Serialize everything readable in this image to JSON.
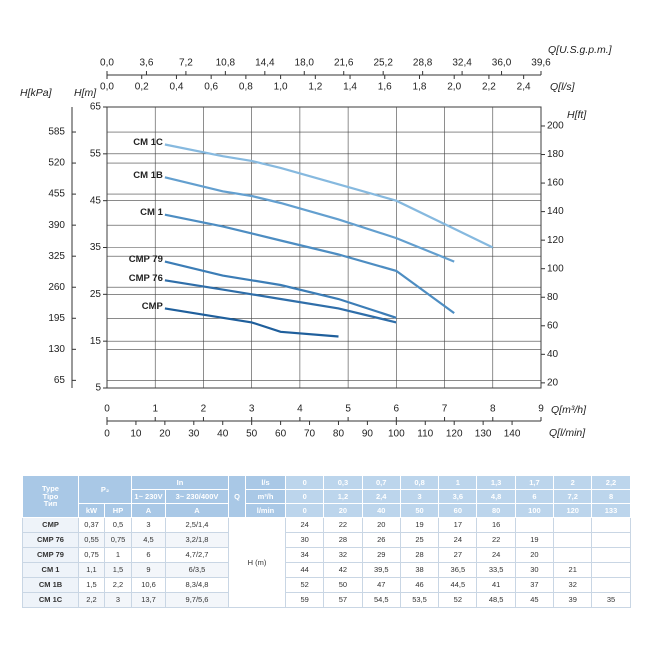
{
  "chart_data": {
    "type": "line",
    "x_label": "Q[m³/h]",
    "xlim": [
      0,
      9
    ],
    "xticks": [
      0,
      1,
      2,
      3,
      4,
      5,
      6,
      7,
      8,
      9
    ],
    "x2_label": "Q[l/min]",
    "x2lim": [
      0,
      150
    ],
    "x2ticks": [
      0,
      10,
      20,
      30,
      40,
      50,
      60,
      70,
      80,
      90,
      100,
      110,
      120,
      130,
      140
    ],
    "x3_label": "Q[l/s]",
    "x3lim": [
      0,
      2.5
    ],
    "x3ticks": [
      {
        "value": 0,
        "label": "0,0"
      },
      {
        "value": 0.2,
        "label": "0,2"
      },
      {
        "value": 0.4,
        "label": "0,4"
      },
      {
        "value": 0.6,
        "label": "0,6"
      },
      {
        "value": 0.8,
        "label": "0,8"
      },
      {
        "value": 1.0,
        "label": "1,0"
      },
      {
        "value": 1.2,
        "label": "1,2"
      },
      {
        "value": 1.4,
        "label": "1,4"
      },
      {
        "value": 1.6,
        "label": "1,6"
      },
      {
        "value": 1.8,
        "label": "1,8"
      },
      {
        "value": 2.0,
        "label": "2,0"
      },
      {
        "value": 2.2,
        "label": "2,2"
      },
      {
        "value": 2.4,
        "label": "2,4"
      }
    ],
    "x4_label": "Q[U.S.g.p.m.]",
    "x4lim": [
      0,
      39.6
    ],
    "x4ticks": [
      {
        "value": 0,
        "label": "0,0"
      },
      {
        "value": 3.6,
        "label": "3,6"
      },
      {
        "value": 7.2,
        "label": "7,2"
      },
      {
        "value": 10.8,
        "label": "10,8"
      },
      {
        "value": 14.4,
        "label": "14,4"
      },
      {
        "value": 18.0,
        "label": "18,0"
      },
      {
        "value": 21.6,
        "label": "21,6"
      },
      {
        "value": 25.2,
        "label": "25,2"
      },
      {
        "value": 28.8,
        "label": "28,8"
      },
      {
        "value": 32.4,
        "label": "32,4"
      },
      {
        "value": 36.0,
        "label": "36,0"
      },
      {
        "value": 39.6,
        "label": "39,6"
      }
    ],
    "y_label": "H[m]",
    "ylim": [
      5,
      65
    ],
    "yticks": [
      5,
      15,
      25,
      35,
      45,
      55,
      65
    ],
    "y2_label": "H[ft]",
    "y2lim": [
      16.4,
      213.3
    ],
    "y2ticks": [
      20,
      40,
      60,
      80,
      100,
      120,
      140,
      160,
      180,
      200
    ],
    "y3_label": "H[kPa]",
    "y3lim": [
      49.0,
      637.4
    ],
    "y3ticks": [
      65,
      130,
      195,
      260,
      325,
      390,
      455,
      520,
      585
    ],
    "grid": true,
    "x": [
      1.2,
      2.4,
      3,
      3.6,
      4.8,
      6,
      7.2,
      8
    ],
    "series": [
      {
        "name": "CMP",
        "color": "#1f5f9c",
        "values": [
          22,
          20,
          19,
          17,
          16,
          null,
          null,
          null
        ]
      },
      {
        "name": "CMP 76",
        "color": "#2f6ea9",
        "values": [
          28,
          26,
          25,
          24,
          22,
          19,
          null,
          null
        ]
      },
      {
        "name": "CMP 79",
        "color": "#3c7db6",
        "values": [
          32,
          29,
          28,
          27,
          24,
          20,
          null,
          null
        ]
      },
      {
        "name": "CM 1",
        "color": "#4d8dc2",
        "values": [
          42,
          39.5,
          38,
          36.5,
          33.5,
          30,
          21,
          null
        ]
      },
      {
        "name": "CM 1B",
        "color": "#639fcf",
        "values": [
          50,
          47,
          46,
          44.5,
          41,
          37,
          32,
          null
        ]
      },
      {
        "name": "CM 1C",
        "color": "#86b9df",
        "values": [
          57,
          54.5,
          53.5,
          52,
          48.5,
          45,
          39,
          35
        ]
      }
    ]
  },
  "table": {
    "header": {
      "type": [
        "Type",
        "Tipo",
        "Тип"
      ],
      "p2": "P₂",
      "in": "In",
      "in_1": "1~ 230V",
      "in_3": "3~ 230/400V",
      "q": "Q",
      "units": [
        "l/s",
        "m³/h",
        "l/min"
      ],
      "sub": [
        "kW",
        "HP",
        "A",
        "A"
      ],
      "h": "H (m)",
      "flow": [
        [
          "0",
          "0,3",
          "0,7",
          "0,8",
          "1",
          "1,3",
          "1,7",
          "2",
          "2,2"
        ],
        [
          "0",
          "1,2",
          "2,4",
          "3",
          "3,6",
          "4,8",
          "6",
          "7,2",
          "8"
        ],
        [
          "0",
          "20",
          "40",
          "50",
          "60",
          "80",
          "100",
          "120",
          "133"
        ]
      ]
    },
    "rows": [
      {
        "type": "CMP",
        "kw": "0,37",
        "hp": "0,5",
        "a1": "3",
        "a3": "2,5/1,4",
        "h": [
          "24",
          "22",
          "20",
          "19",
          "17",
          "16"
        ]
      },
      {
        "type": "CMP 76",
        "kw": "0,55",
        "hp": "0,75",
        "a1": "4,5",
        "a3": "3,2/1,8",
        "h": [
          "30",
          "28",
          "26",
          "25",
          "24",
          "22",
          "19"
        ]
      },
      {
        "type": "CMP 79",
        "kw": "0,75",
        "hp": "1",
        "a1": "6",
        "a3": "4,7/2,7",
        "h": [
          "34",
          "32",
          "29",
          "28",
          "27",
          "24",
          "20"
        ]
      },
      {
        "type": "CM 1",
        "kw": "1,1",
        "hp": "1,5",
        "a1": "9",
        "a3": "6/3,5",
        "h": [
          "44",
          "42",
          "39,5",
          "38",
          "36,5",
          "33,5",
          "30",
          "21"
        ]
      },
      {
        "type": "CM 1B",
        "kw": "1,5",
        "hp": "2,2",
        "a1": "10,6",
        "a3": "8,3/4,8",
        "h": [
          "52",
          "50",
          "47",
          "46",
          "44,5",
          "41",
          "37",
          "32"
        ]
      },
      {
        "type": "CM 1C",
        "kw": "2,2",
        "hp": "3",
        "a1": "13,7",
        "a3": "9,7/5,6",
        "h": [
          "59",
          "57",
          "54,5",
          "53,5",
          "52",
          "48,5",
          "45",
          "39",
          "35"
        ]
      }
    ]
  }
}
